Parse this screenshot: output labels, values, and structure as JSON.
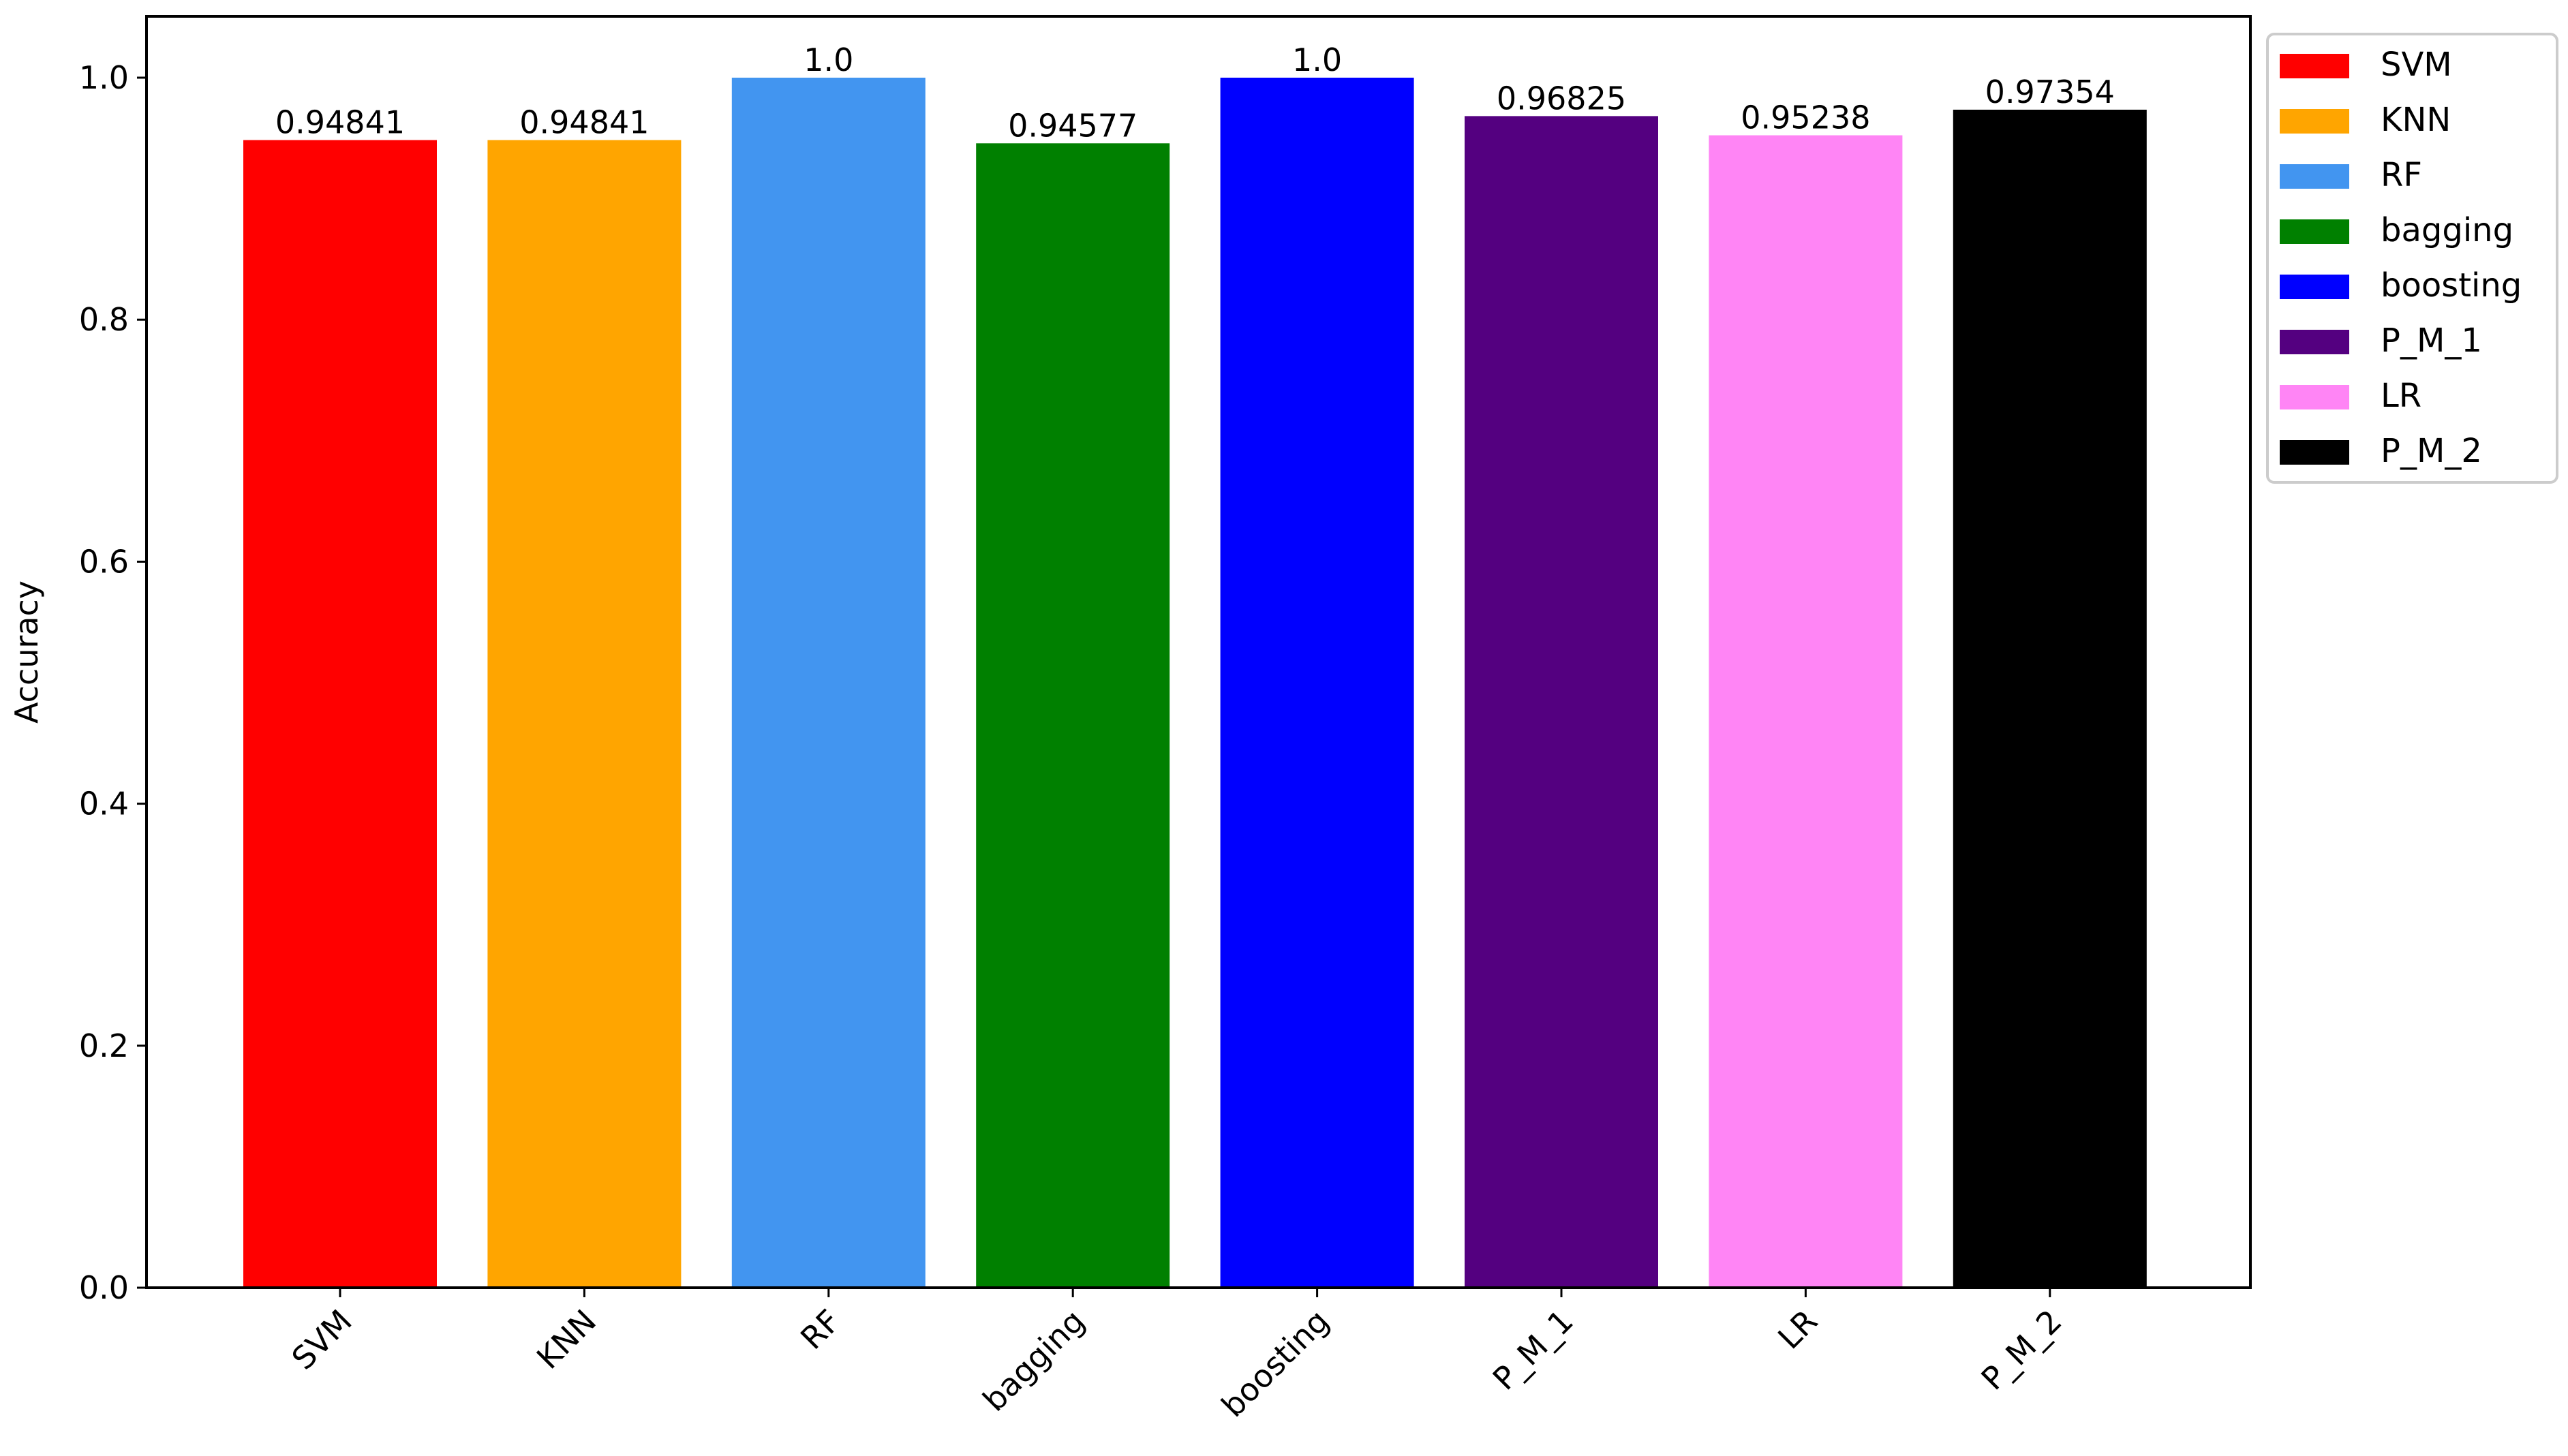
{
  "chart_data": {
    "type": "bar",
    "title": "",
    "xlabel": "",
    "ylabel": "Accuracy",
    "ylim": [
      0,
      1.05
    ],
    "yticks": [
      "0.0",
      "0.2",
      "0.4",
      "0.6",
      "0.8",
      "1.0"
    ],
    "grid": false,
    "legend_position": "outside top-right",
    "categories": [
      "SVM",
      "KNN",
      "RF",
      "bagging",
      "boosting",
      "P_M_1",
      "LR",
      "P_M_2"
    ],
    "values": [
      0.94841,
      0.94841,
      1.0,
      0.94577,
      1.0,
      0.96825,
      0.95238,
      0.97354
    ],
    "value_labels": [
      "0.94841",
      "0.94841",
      "1.0",
      "0.94577",
      "1.0",
      "0.96825",
      "0.95238",
      "0.97354"
    ],
    "colors": [
      "#ff0000",
      "#ffa500",
      "#4295f0",
      "#008000",
      "#0000ff",
      "#540080",
      "#ff85f5",
      "#000000"
    ],
    "legend": [
      "SVM",
      "KNN",
      "RF",
      "bagging",
      "boosting",
      "P_M_1",
      "LR",
      "P_M_2"
    ]
  }
}
